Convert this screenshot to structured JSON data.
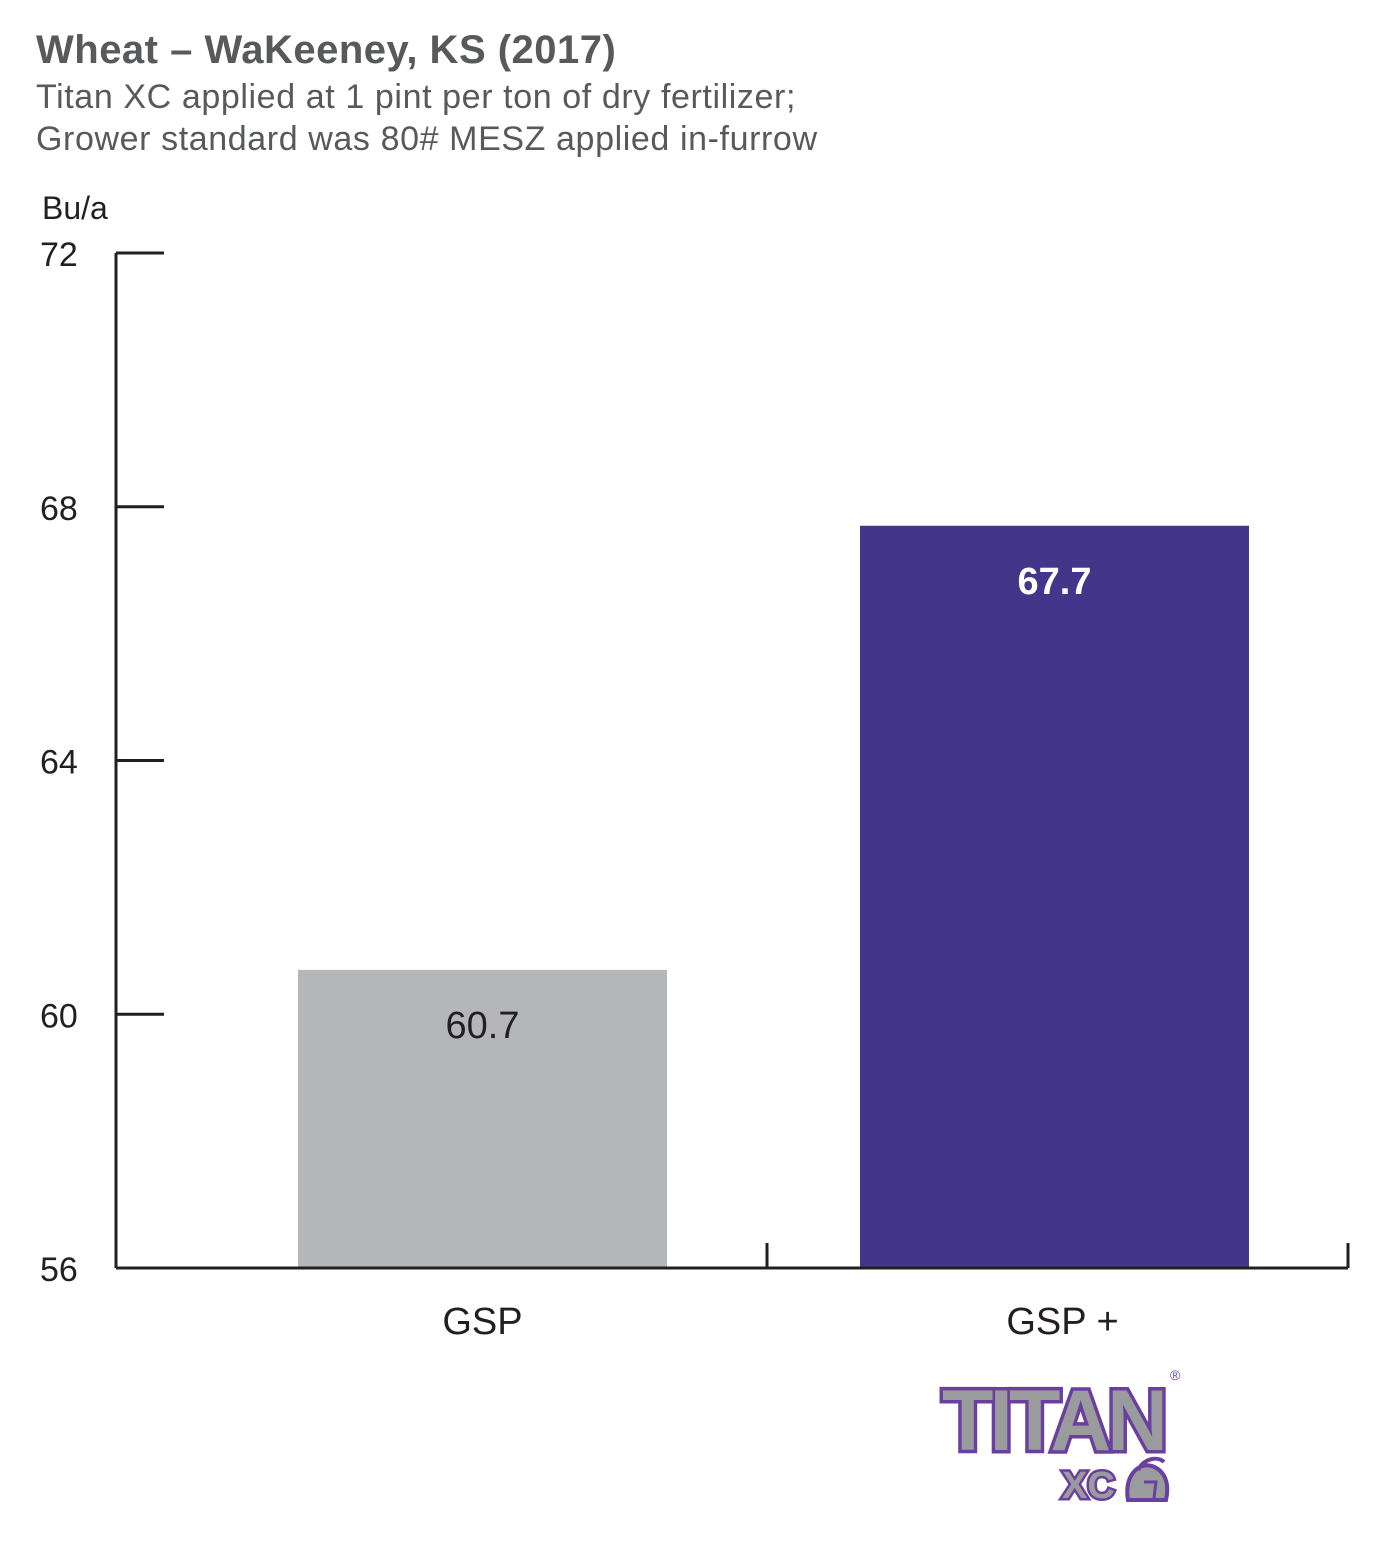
{
  "title": "Wheat – WaKeeney, KS (2017)",
  "subtitle_lines": [
    "Titan XC applied at 1 pint per ton of dry fertilizer;",
    "Grower standard was 80# MESZ applied in-furrow"
  ],
  "chart_data": {
    "type": "bar",
    "categories": [
      "GSP",
      "GSP +"
    ],
    "values": [
      60.7,
      67.7
    ],
    "data_labels": [
      "60.7",
      "67.7"
    ],
    "bar_colors": [
      "#b5b6b8",
      "#43358a"
    ],
    "label_colors": [
      "#231f20",
      "#ffffff"
    ],
    "ylabel": "Bu/a",
    "xlabel": "",
    "ylim": [
      56,
      72
    ],
    "yticks": [
      56,
      60,
      64,
      68,
      72
    ],
    "grid": false
  },
  "logo": {
    "wordmark": "TITAN",
    "suffix": "XC",
    "registered": "®",
    "colors": {
      "outline": "#6a3fa0",
      "fill": "#9a9b9d",
      "shadow": "#3d2466"
    }
  }
}
